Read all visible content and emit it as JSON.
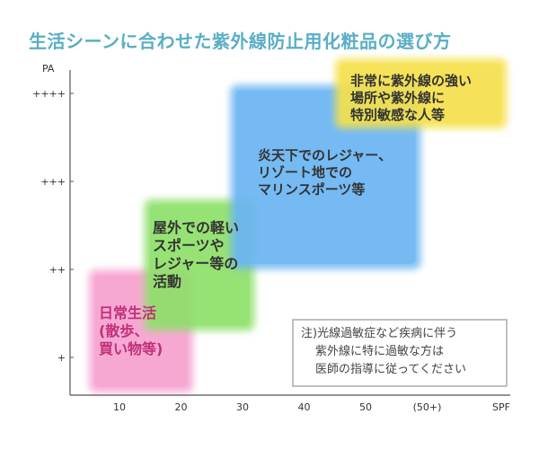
{
  "chart_data": {
    "type": "area",
    "title": "生活シーンに合わせた紫外線防止用化粧品の選び方",
    "x_axis_label": "SPF",
    "y_axis_label": "PA",
    "x_ticks": [
      "10",
      "20",
      "30",
      "40",
      "50",
      "(50+)"
    ],
    "y_ticks": [
      "+",
      "++",
      "+++",
      "++++"
    ],
    "regions": [
      {
        "lines": [
          "日常生活",
          "(散歩、",
          "買い物等)"
        ],
        "spf_range": [
          5,
          22
        ],
        "pa_range": [
          0.6,
          2.0
        ],
        "color": "#f5a0cf",
        "text_color": "#c0307a"
      },
      {
        "lines": [
          "屋外での軽い",
          "スポーツや",
          "レジャー等の",
          "活動"
        ],
        "spf_range": [
          14,
          32
        ],
        "pa_range": [
          1.3,
          2.8
        ],
        "color": "#8ee06a",
        "text_color": "#333333"
      },
      {
        "lines": [
          "炎天下でのレジャー、",
          "リゾート地での",
          "マリンスポーツ等"
        ],
        "spf_range": [
          28,
          59
        ],
        "pa_range": [
          2.0,
          4.1
        ],
        "color": "#6ab4f2",
        "text_color": "#333333"
      },
      {
        "lines": [
          "非常に紫外線の強い",
          "場所や紫外線に",
          "特別敏感な人等"
        ],
        "spf_range": [
          45,
          73
        ],
        "pa_range": [
          3.6,
          4.4
        ],
        "color": "#f4e04a",
        "text_color": "#333333"
      }
    ],
    "note": [
      "注)光線過敏症など疾病に伴う",
      "紫外線に特に過敏な方は",
      "医師の指導に従ってください"
    ]
  }
}
